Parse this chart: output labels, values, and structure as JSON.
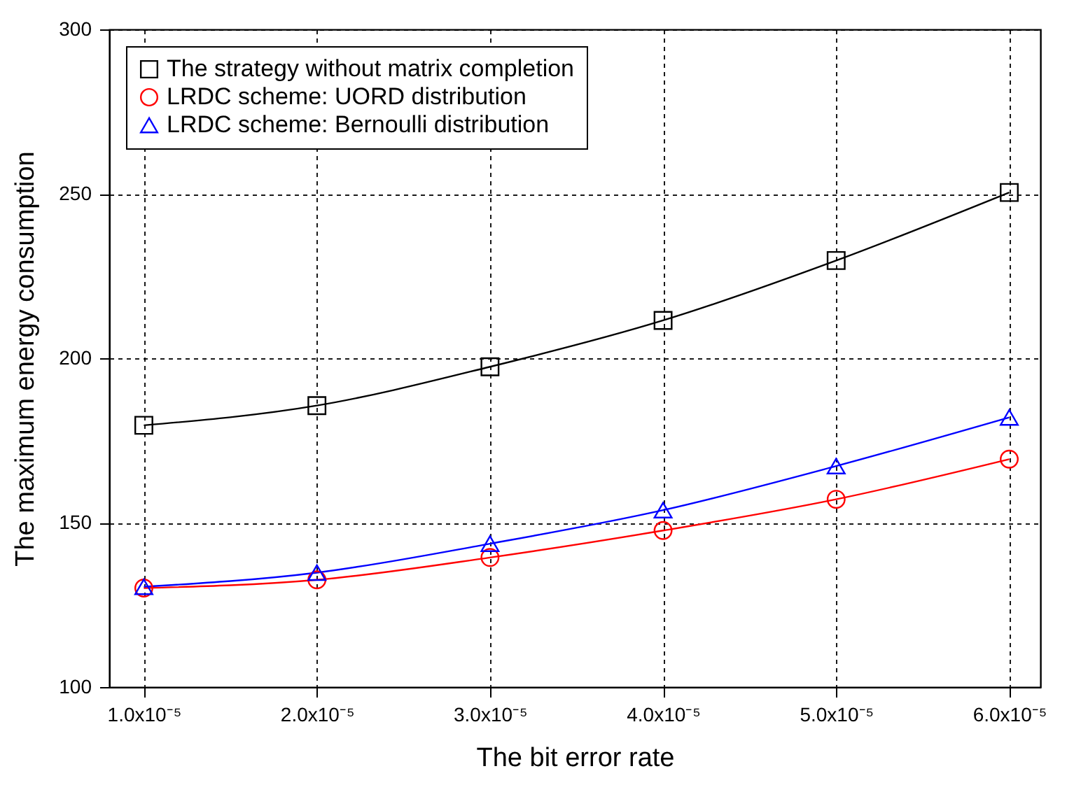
{
  "chart_data": {
    "type": "line",
    "xlabel": "The bit error rate",
    "ylabel": "The maximum energy consumption",
    "x": [
      1e-05,
      2e-05,
      3e-05,
      4e-05,
      5e-05,
      6e-05
    ],
    "series": [
      {
        "name": "The strategy without matrix completion",
        "color": "#000000",
        "marker": "square",
        "values": [
          179.6,
          185.6,
          197.4,
          211.5,
          229.7,
          250.4
        ]
      },
      {
        "name": "LRDC scheme: UORD distribution",
        "color": "#ff0000",
        "marker": "circle",
        "values": [
          130.1,
          132.6,
          139.4,
          147.6,
          157.1,
          169.3
        ]
      },
      {
        "name": "LRDC scheme: Bernoulli distribution",
        "color": "#0000ff",
        "marker": "triangle",
        "values": [
          130.5,
          134.8,
          143.6,
          153.8,
          167.2,
          182.0
        ]
      }
    ],
    "xlim": [
      8e-06,
      6.18e-05
    ],
    "xticks": [
      {
        "value": 1e-05,
        "label": "1.0x10⁻⁵"
      },
      {
        "value": 2e-05,
        "label": "2.0x10⁻⁵"
      },
      {
        "value": 3e-05,
        "label": "3.0x10⁻⁵"
      },
      {
        "value": 4e-05,
        "label": "4.0x10⁻⁵"
      },
      {
        "value": 5e-05,
        "label": "5.0x10⁻⁵"
      },
      {
        "value": 6e-05,
        "label": "6.0x10⁻⁵"
      }
    ],
    "ylim": [
      100,
      300
    ],
    "yticks": [
      100,
      150,
      200,
      250,
      300
    ],
    "grid": true,
    "legend": "top left",
    "line_style": "solid"
  }
}
